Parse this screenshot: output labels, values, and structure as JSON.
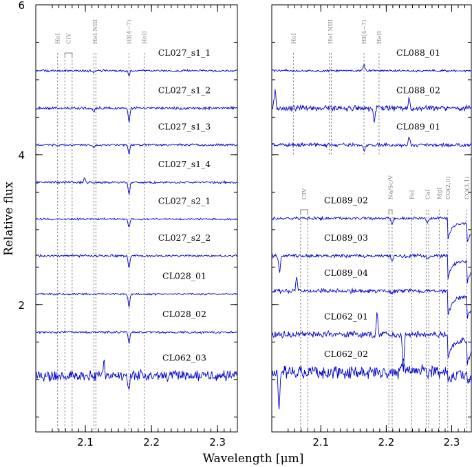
{
  "chart_data": {
    "type": "line",
    "xlabel": "Wavelength [μm]",
    "ylabel": "Relative flux",
    "xlim": [
      2.025,
      2.33
    ],
    "ylim": [
      0.3,
      6.0
    ],
    "x_ticks": [
      "2.1",
      "2.2",
      "2.3"
    ],
    "y_ticks": [
      "2",
      "4",
      "6"
    ],
    "panels": [
      {
        "id": "left",
        "lines": [
          {
            "name": "HeI",
            "wavelengths": [
              2.058
            ]
          },
          {
            "name": "CIV",
            "wavelengths": [
              2.069,
              2.08
            ],
            "bracket": true
          },
          {
            "name": "HeI NIII",
            "wavelengths": [
              2.113,
              2.116
            ]
          },
          {
            "name": "HI(4−7)",
            "wavelengths": [
              2.166
            ]
          },
          {
            "name": "HeII",
            "wavelengths": [
              2.189
            ]
          }
        ],
        "series": [
          {
            "name": "CL027_s1_1",
            "offset": 5.12,
            "noise": 0.012,
            "features": [
              [
                2.166,
                -0.07
              ],
              [
                2.113,
                -0.03
              ]
            ]
          },
          {
            "name": "CL027_s1_2",
            "offset": 4.62,
            "noise": 0.014,
            "features": [
              [
                2.166,
                -0.18
              ],
              [
                2.113,
                -0.04
              ]
            ]
          },
          {
            "name": "CL027_s1_3",
            "offset": 4.13,
            "noise": 0.012,
            "features": [
              [
                2.166,
                -0.12
              ],
              [
                2.113,
                -0.03
              ]
            ]
          },
          {
            "name": "CL027_s1_4",
            "offset": 3.63,
            "noise": 0.012,
            "features": [
              [
                2.166,
                -0.17
              ],
              [
                2.099,
                0.06
              ]
            ]
          },
          {
            "name": "CL027_s2_1",
            "offset": 3.14,
            "noise": 0.01,
            "features": [
              [
                2.166,
                -0.11
              ]
            ]
          },
          {
            "name": "CL027_s2_2",
            "offset": 2.65,
            "noise": 0.012,
            "features": [
              [
                2.166,
                -0.16
              ]
            ]
          },
          {
            "name": "CL028_01",
            "offset": 2.14,
            "noise": 0.01,
            "features": [
              [
                2.166,
                -0.18
              ]
            ]
          },
          {
            "name": "CL028_02",
            "offset": 1.63,
            "noise": 0.012,
            "features": [
              [
                2.166,
                -0.15
              ]
            ]
          },
          {
            "name": "CL062_03",
            "offset": 1.05,
            "noise": 0.06,
            "features": [
              [
                2.166,
                -0.16
              ],
              [
                2.128,
                0.22
              ]
            ]
          }
        ]
      },
      {
        "id": "right",
        "lines": [
          {
            "name": "HeI",
            "wavelengths": [
              2.058
            ]
          },
          {
            "name": "HeI NIII",
            "wavelengths": [
              2.113,
              2.116
            ]
          },
          {
            "name": "HI(4−7)",
            "wavelengths": [
              2.166
            ]
          },
          {
            "name": "HeII",
            "wavelengths": [
              2.189
            ]
          }
        ],
        "series": [
          {
            "name": "CL088_01",
            "offset": 5.12,
            "noise": 0.012,
            "features": [
              [
                2.166,
                0.08
              ]
            ]
          },
          {
            "name": "CL088_02",
            "offset": 4.62,
            "noise": 0.03,
            "features": [
              [
                2.03,
                0.22
              ],
              [
                2.182,
                -0.18
              ],
              [
                2.235,
                0.14
              ]
            ]
          },
          {
            "name": "CL089_01",
            "offset": 4.13,
            "noise": 0.02,
            "features": [
              [
                2.235,
                0.12
              ],
              [
                2.166,
                -0.08
              ]
            ]
          }
        ],
        "divider": true,
        "lines_lower": [
          {
            "name": "CIV",
            "wavelengths": [
              2.069,
              2.08
            ],
            "bracket": true
          },
          {
            "name": "Na/Sc/V",
            "wavelengths": [
              2.204,
              2.209
            ],
            "bracket": true
          },
          {
            "name": "FeI",
            "wavelengths": [
              2.239
            ]
          },
          {
            "name": "CaI",
            "wavelengths": [
              2.261,
              2.265
            ]
          },
          {
            "name": "MgI",
            "wavelengths": [
              2.281
            ]
          },
          {
            "name": "CO(2,0)",
            "wavelengths": [
              2.294
            ]
          },
          {
            "name": "CO(3,1)",
            "wavelengths": [
              2.323
            ]
          }
        ],
        "series_lower": [
          {
            "name": "CL089_02",
            "offset": 3.15,
            "noise": 0.015,
            "features": [
              [
                2.209,
                -0.08
              ],
              [
                2.263,
                -0.06
              ]
            ],
            "co": 0.25
          },
          {
            "name": "CL089_03",
            "offset": 2.65,
            "noise": 0.018,
            "features": [
              [
                2.209,
                -0.06
              ],
              [
                2.263,
                -0.05
              ],
              [
                2.037,
                -0.22
              ]
            ],
            "co": 0.28
          },
          {
            "name": "CL089_04",
            "offset": 2.18,
            "noise": 0.022,
            "features": [
              [
                2.209,
                -0.05
              ],
              [
                2.063,
                0.18
              ]
            ],
            "co": 0.3
          },
          {
            "name": "CL062_01",
            "offset": 1.6,
            "noise": 0.035,
            "features": [
              [
                2.186,
                0.3
              ],
              [
                2.226,
                -0.5
              ]
            ],
            "co": 0.3
          },
          {
            "name": "CL062_02",
            "offset": 1.1,
            "noise": 0.07,
            "features": [
              [
                2.036,
                -0.45
              ],
              [
                2.226,
                0.2
              ]
            ],
            "co": 0.1
          }
        ]
      }
    ]
  }
}
